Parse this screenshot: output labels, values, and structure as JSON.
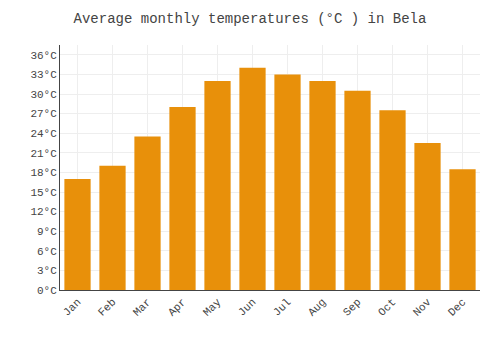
{
  "chart_data": {
    "type": "bar",
    "title": "Average monthly temperatures (°C ) in Bela",
    "categories": [
      "Jan",
      "Feb",
      "Mar",
      "Apr",
      "May",
      "Jun",
      "Jul",
      "Aug",
      "Sep",
      "Oct",
      "Nov",
      "Dec"
    ],
    "values": [
      17,
      19,
      23.5,
      28,
      32,
      34,
      33,
      32,
      30.5,
      27.5,
      22.5,
      18.5
    ],
    "color": "#E8900A",
    "ylim": [
      0,
      37.5
    ],
    "yticks": [
      {
        "value": 0,
        "label": "0°C"
      },
      {
        "value": 3,
        "label": "3°C"
      },
      {
        "value": 6,
        "label": "6°C"
      },
      {
        "value": 9,
        "label": "9°C"
      },
      {
        "value": 12,
        "label": "12°C"
      },
      {
        "value": 15,
        "label": "15°C"
      },
      {
        "value": 18,
        "label": "18°C"
      },
      {
        "value": 21,
        "label": "21°C"
      },
      {
        "value": 24,
        "label": "24°C"
      },
      {
        "value": 27,
        "label": "27°C"
      },
      {
        "value": 30,
        "label": "30°C"
      },
      {
        "value": 33,
        "label": "33°C"
      },
      {
        "value": 36,
        "label": "36°C"
      }
    ],
    "grid": true
  }
}
